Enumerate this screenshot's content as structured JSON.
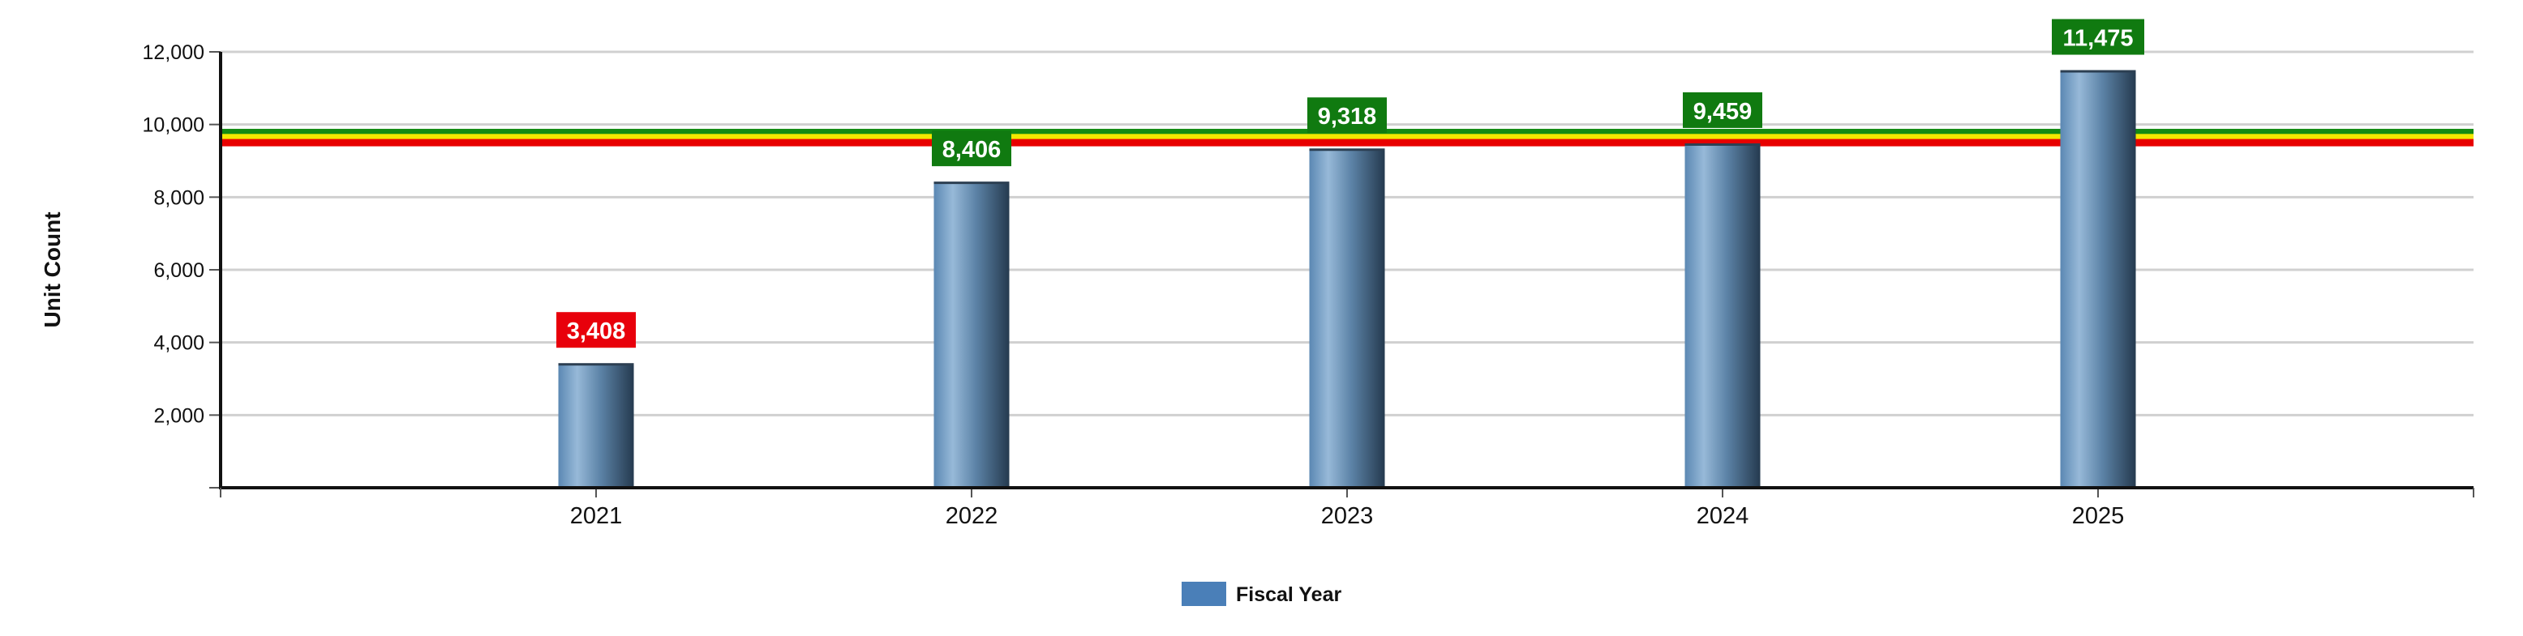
{
  "chart_data": {
    "type": "bar",
    "title": "",
    "xlabel": "",
    "ylabel": "Unit Count",
    "ylim": [
      0,
      12000
    ],
    "yticks": [
      2000,
      4000,
      6000,
      8000,
      10000,
      12000
    ],
    "ytick_labels": [
      "2,000",
      "4,000",
      "6,000",
      "8,000",
      "10,000",
      "12,000"
    ],
    "categories": [
      "2021",
      "2022",
      "2023",
      "2024",
      "2025"
    ],
    "series": [
      {
        "name": "Fiscal Year",
        "values": [
          3408,
          8406,
          9318,
          9459,
          11475
        ],
        "data_labels": [
          "3,408",
          "8,406",
          "9,318",
          "9,459",
          "11,475"
        ],
        "label_colors": [
          "#e8000b",
          "#107a10",
          "#107a10",
          "#107a10",
          "#107a10"
        ]
      }
    ],
    "reference_bands": [
      {
        "name": "green-threshold-line",
        "value": 9780,
        "color": "#138a13"
      },
      {
        "name": "yellow-threshold-line",
        "value": 9640,
        "color": "#f2e800"
      },
      {
        "name": "red-threshold-line",
        "value": 9500,
        "color": "#e80000"
      }
    ],
    "grid": true,
    "legend": {
      "position": "bottom-center",
      "label": "Fiscal Year",
      "color": "#4a7fb8"
    }
  }
}
